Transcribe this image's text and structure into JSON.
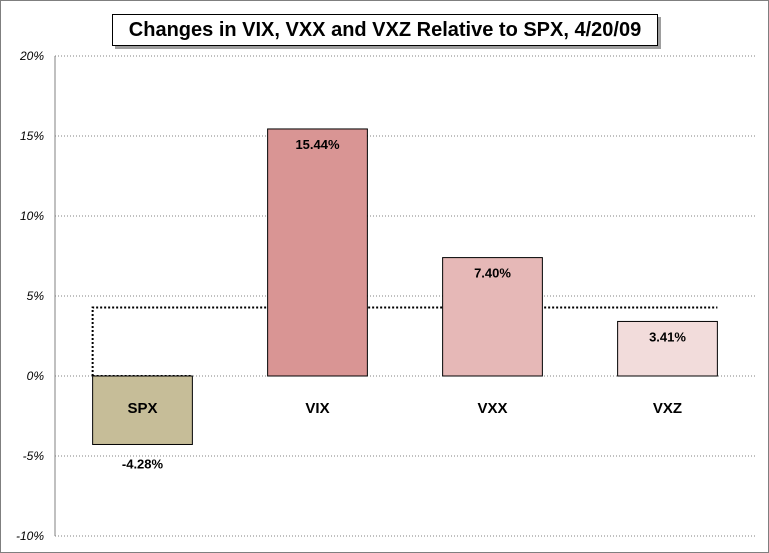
{
  "chart_data": {
    "type": "bar",
    "title": "Changes in VIX, VXX and VXZ Relative to SPX, 4/20/09",
    "xlabel": "",
    "ylabel": "",
    "categories": [
      "SPX",
      "VIX",
      "VXX",
      "VXZ"
    ],
    "values": [
      -4.28,
      15.44,
      7.4,
      3.41
    ],
    "data_labels": [
      "-4.28%",
      "15.44%",
      "7.40%",
      "3.41%"
    ],
    "ylim": [
      -10,
      20
    ],
    "yticks": [
      20,
      15,
      10,
      5,
      0,
      -5,
      -10
    ],
    "ytick_labels": [
      "20%",
      "15%",
      "10%",
      "5%",
      "0%",
      "-5%",
      "-10%"
    ],
    "grid": "horizontal-dotted",
    "legend": "none",
    "reference_line": {
      "value": 4.28,
      "style": "dotted"
    },
    "colors": {
      "bars": [
        "#c6bd98",
        "#d99594",
        "#e6b8b7",
        "#f2dcdb"
      ],
      "outline": "#000000",
      "grid": "#808080"
    }
  }
}
